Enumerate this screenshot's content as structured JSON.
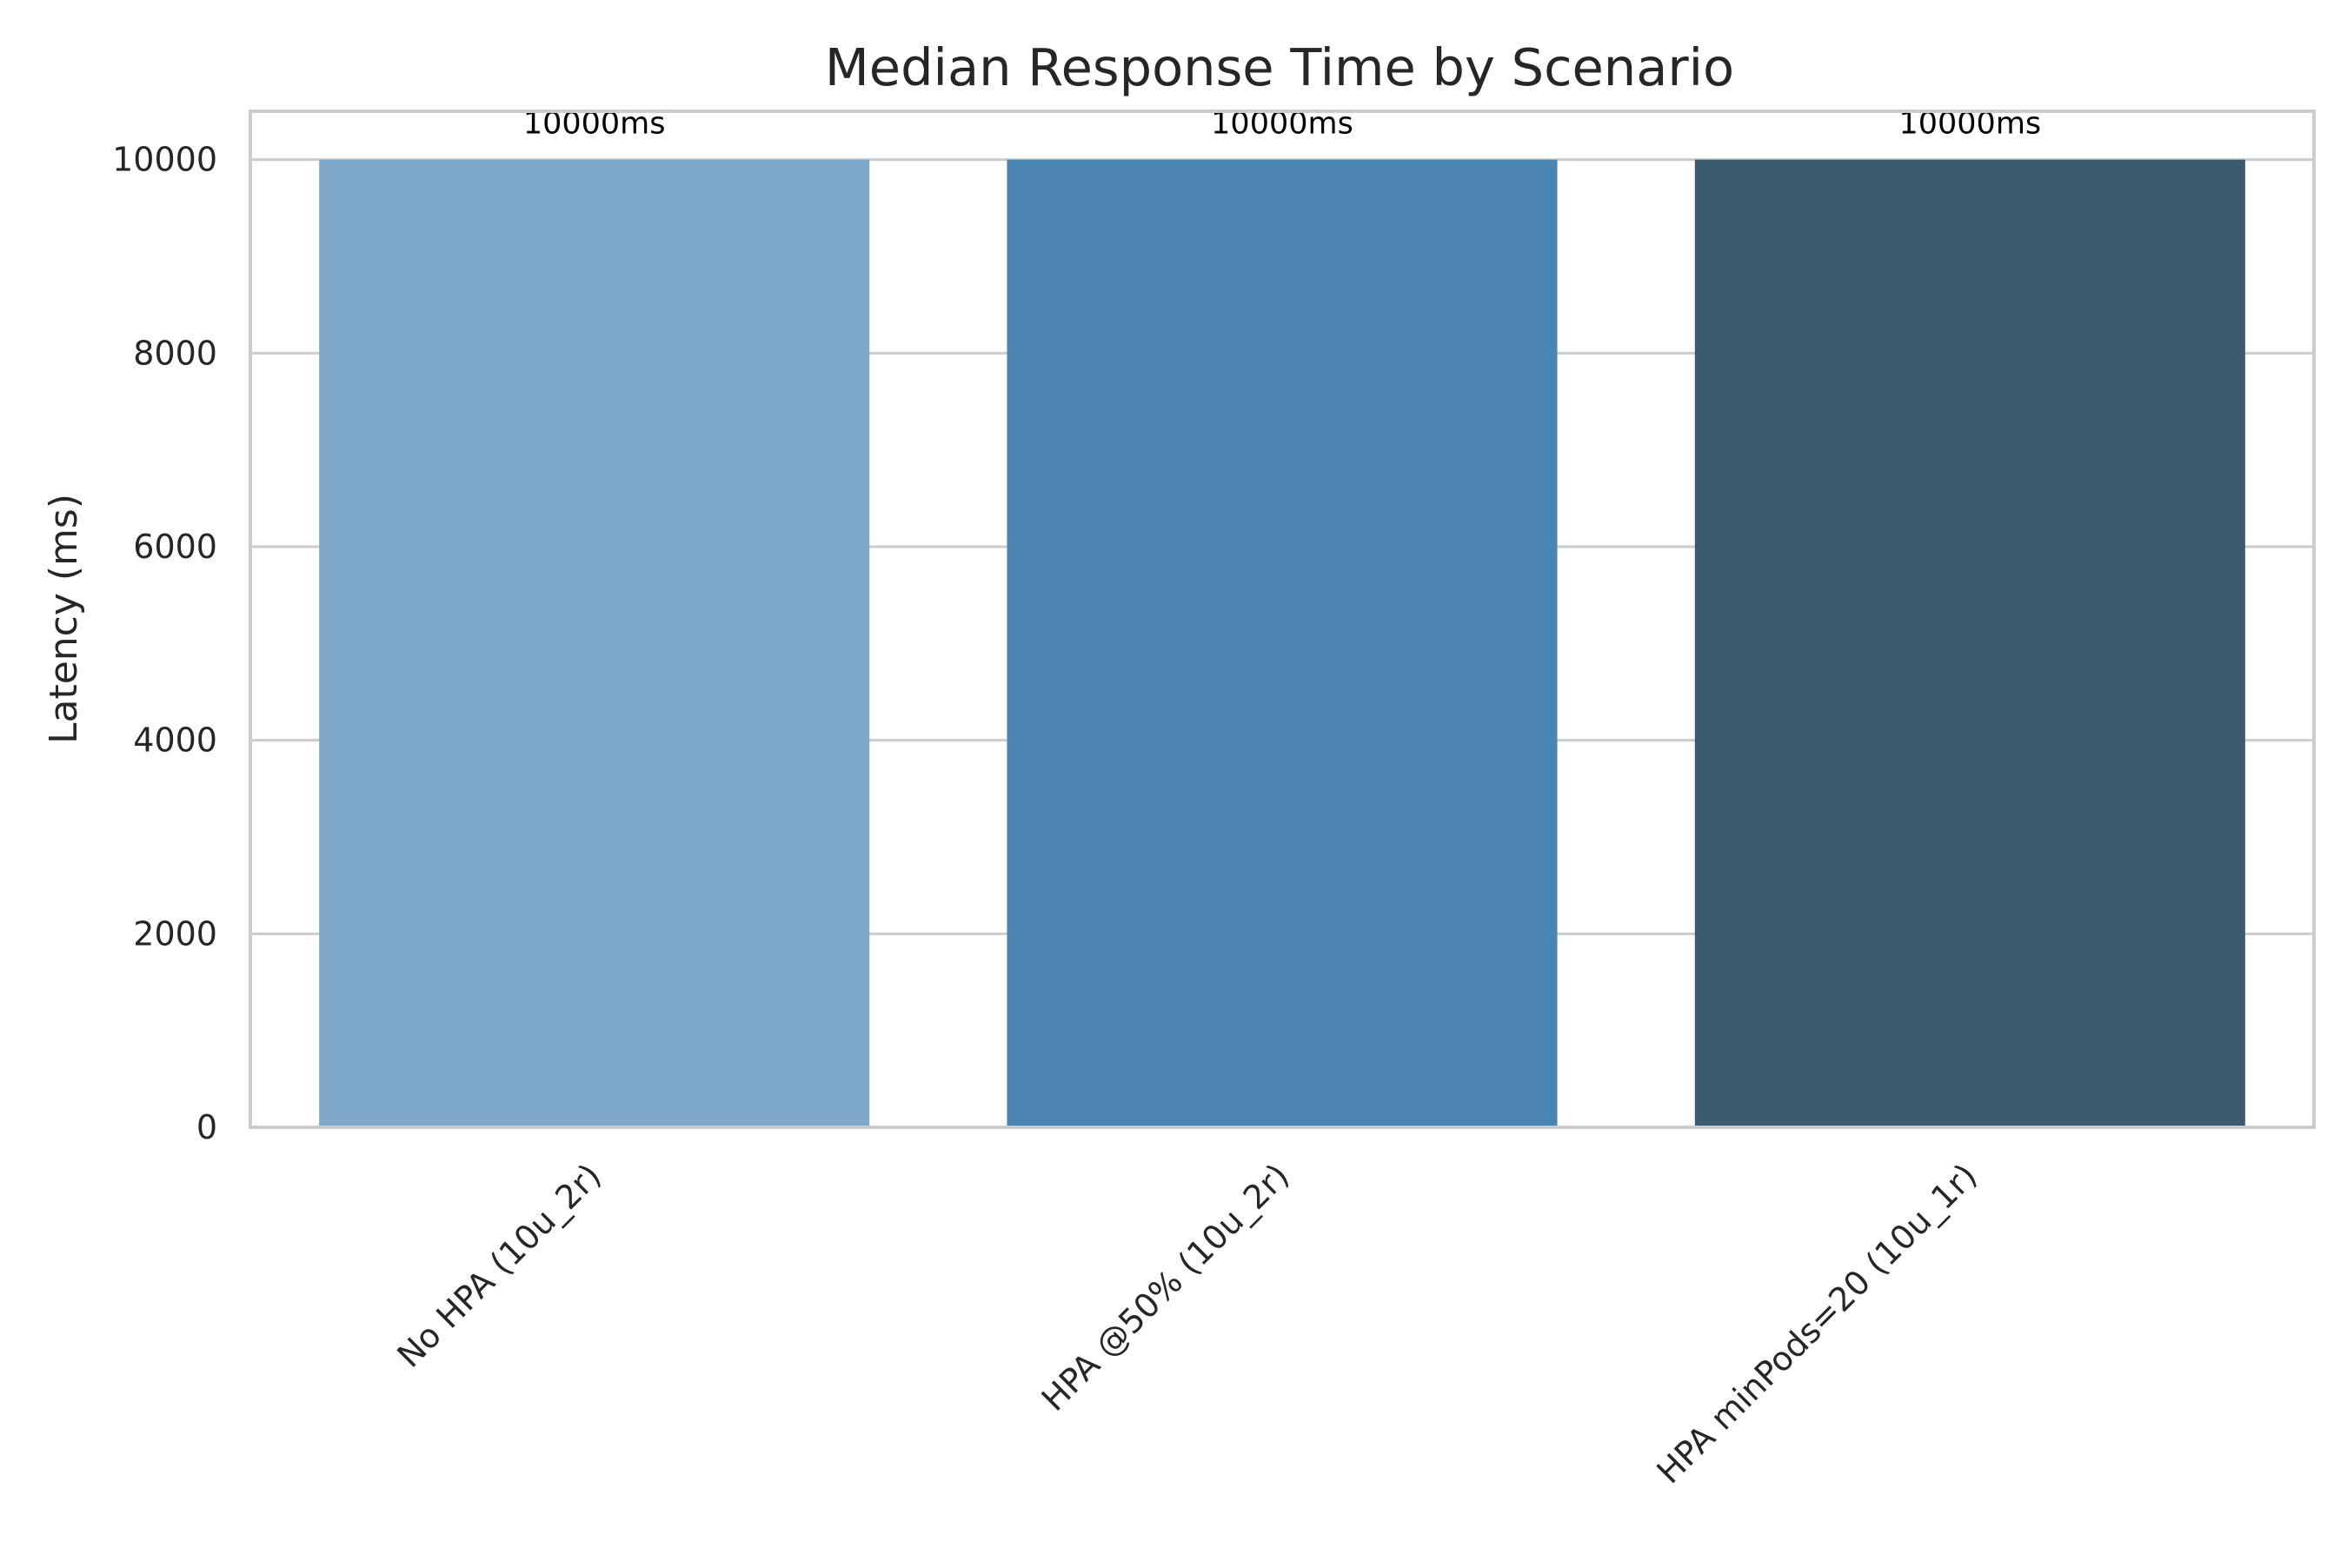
{
  "chart_data": {
    "type": "bar",
    "title": "Median Response Time by Scenario",
    "xlabel": "",
    "ylabel": "Latency (ms)",
    "categories": [
      "No HPA (10u_2r)",
      "HPA @50% (10u_2r)",
      "HPA minPods=20 (10u_1r)"
    ],
    "values": [
      10000,
      10000,
      10000
    ],
    "data_labels": [
      "10000ms",
      "10000ms",
      "10000ms"
    ],
    "bar_colors": [
      "#7ea8c9",
      "#4a84b0",
      "#3d5b70"
    ],
    "ylim": [
      0,
      10500
    ],
    "yticks": [
      0,
      2000,
      4000,
      6000,
      8000,
      10000
    ],
    "ytick_labels": [
      "0",
      "2000",
      "4000",
      "6000",
      "8000",
      "10000"
    ],
    "grid": "horizontal",
    "grid_color": "#cccccc",
    "legend": "none"
  }
}
